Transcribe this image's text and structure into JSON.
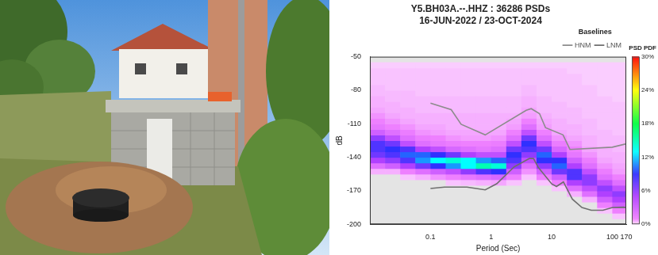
{
  "chart_data": {
    "type": "heatmap",
    "title": "Y5.BH03A.--.HHZ : 36286 PSDs",
    "subtitle": "16-JUN-2022 / 23-OCT-2024",
    "x_label": "Period (Sec)",
    "y_label": "dB",
    "log": "x",
    "grid": false,
    "xlim": [
      0.01,
      170
    ],
    "xticks": [
      0.1,
      1,
      10,
      100,
      170
    ],
    "ylim": [
      -200,
      -50
    ],
    "yticks": [
      -200,
      -170,
      -140,
      -110,
      -80,
      -50
    ],
    "legend": "upper right",
    "legend_title": "Baselines",
    "series": [
      {
        "name": "HNM",
        "type": "line",
        "color": "#8c8c8c",
        "line_style": "solid",
        "x": [
          0.1,
          0.22,
          0.32,
          0.8,
          3.8,
          4.6,
          6.3,
          7.9,
          15.4,
          20,
          100,
          170
        ],
        "values": [
          -91.5,
          -97.4,
          -110.5,
          -120,
          -98,
          -96.5,
          -101,
          -113.5,
          -120,
          -133,
          -131,
          -128
        ]
      },
      {
        "name": "LNM",
        "type": "line",
        "color": "#6e6e6e",
        "line_style": "solid",
        "x": [
          0.1,
          0.17,
          0.4,
          0.8,
          1.24,
          2.4,
          4.3,
          5,
          6,
          10,
          12,
          15.6,
          21.9,
          31.6,
          45,
          70,
          101,
          154,
          170
        ],
        "values": [
          -168,
          -166.7,
          -166.7,
          -169.2,
          -163.7,
          -148.6,
          -141.1,
          -141.1,
          -149,
          -163.8,
          -166.2,
          -162.1,
          -177.5,
          -185,
          -187.5,
          -187.5,
          -185,
          -184.7,
          -185
        ]
      }
    ],
    "pdf": {
      "period_edges": [
        0.01,
        0.0178,
        0.0316,
        0.0562,
        0.1,
        0.178,
        0.316,
        0.562,
        1,
        1.78,
        3.16,
        5.62,
        10,
        17.8,
        31.6,
        56.2,
        100,
        178
      ],
      "db_edges": [
        -200,
        -195,
        -190,
        -185,
        -180,
        -175,
        -170,
        -165,
        -160,
        -155,
        -150,
        -145,
        -140,
        -135,
        -130,
        -125,
        -120,
        -115,
        -110,
        -105,
        -100,
        -95,
        -90,
        -85,
        -80,
        -75,
        -70,
        -65,
        -60,
        -55,
        -50
      ],
      "cells": [
        [
          0,
          0,
          0,
          0,
          0,
          0,
          0,
          0,
          0,
          0.5,
          2,
          5,
          7,
          8,
          8,
          6,
          3,
          1.5,
          1,
          0.8,
          0.6,
          0.5,
          0.5,
          0.4,
          0.4,
          0.3,
          0.3,
          0.3,
          0.2,
          0
        ],
        [
          0,
          0,
          0,
          0,
          0,
          0,
          0,
          0,
          0,
          0.5,
          3,
          6,
          8,
          9,
          7,
          4,
          2,
          1,
          0.8,
          0.6,
          0.5,
          0.5,
          0.4,
          0.4,
          0.3,
          0.3,
          0.3,
          0.3,
          0.2,
          0
        ],
        [
          0,
          0,
          0,
          0,
          0,
          0,
          0,
          0,
          0.3,
          1,
          5,
          8,
          10,
          8,
          4,
          2,
          1.2,
          0.8,
          0.6,
          0.5,
          0.5,
          0.4,
          0.4,
          0.4,
          0.3,
          0.3,
          0.3,
          0.3,
          0.2,
          0
        ],
        [
          0,
          0,
          0,
          0,
          0,
          0,
          0,
          0,
          0.5,
          2,
          7,
          11,
          10,
          5,
          2,
          1.2,
          0.8,
          0.6,
          0.5,
          0.5,
          0.4,
          0.4,
          0.4,
          0.3,
          0.3,
          0.3,
          0.3,
          0.3,
          0.2,
          0
        ],
        [
          0,
          0,
          0,
          0,
          0,
          0,
          0,
          0,
          0.8,
          3,
          9,
          13,
          9,
          4,
          1.5,
          1,
          0.7,
          0.6,
          0.5,
          0.5,
          0.4,
          0.4,
          0.4,
          0.3,
          0.3,
          0.3,
          0.3,
          0.3,
          0.2,
          0
        ],
        [
          0,
          0,
          0,
          0,
          0,
          0,
          0,
          0.3,
          1,
          4,
          11,
          14,
          7,
          2.5,
          1.2,
          0.8,
          0.6,
          0.5,
          0.5,
          0.5,
          0.4,
          0.4,
          0.4,
          0.3,
          0.3,
          0.3,
          0.3,
          0.3,
          0.2,
          0
        ],
        [
          0,
          0,
          0,
          0,
          0,
          0,
          0,
          0.4,
          1.5,
          6,
          13,
          13,
          5,
          2,
          1,
          0.7,
          0.6,
          0.5,
          0.5,
          0.5,
          0.4,
          0.4,
          0.4,
          0.3,
          0.3,
          0.3,
          0.3,
          0.3,
          0.2,
          0
        ],
        [
          0,
          0,
          0,
          0,
          0,
          0,
          0,
          0.5,
          2,
          8,
          15,
          11,
          4,
          1.5,
          1,
          0.7,
          0.6,
          0.5,
          0.5,
          0.5,
          0.4,
          0.4,
          0.4,
          0.3,
          0.3,
          0.3,
          0.3,
          0.3,
          0.2,
          0
        ],
        [
          0,
          0,
          0,
          0,
          0,
          0,
          0,
          0.6,
          2.5,
          9,
          14,
          10,
          4,
          2,
          1.2,
          0.8,
          0.6,
          0.5,
          0.5,
          0.5,
          0.4,
          0.4,
          0.4,
          0.3,
          0.3,
          0.3,
          0.3,
          0.3,
          0.2,
          0
        ],
        [
          0,
          0,
          0,
          0,
          0,
          0,
          0,
          0.3,
          1,
          3,
          6,
          8,
          9,
          7,
          4,
          2,
          1,
          0.7,
          0.6,
          0.5,
          0.4,
          0.4,
          0.4,
          0.3,
          0.3,
          0.3,
          0.3,
          0.3,
          0.2,
          0
        ],
        [
          0,
          0,
          0,
          0,
          0,
          0,
          0,
          0,
          0.3,
          0.8,
          2,
          4,
          6,
          8,
          9,
          7,
          4,
          2,
          1,
          0.7,
          0.6,
          0.5,
          0.5,
          0.4,
          0.4,
          0.3,
          0.3,
          0.3,
          0.2,
          0
        ],
        [
          0,
          0,
          0,
          0,
          0,
          0,
          0,
          0.3,
          1,
          3,
          6,
          9,
          10,
          7,
          4,
          2,
          1,
          0.7,
          0.6,
          0.5,
          0.4,
          0.4,
          0.4,
          0.3,
          0.3,
          0.3,
          0.3,
          0.3,
          0.2,
          0
        ],
        [
          0,
          0,
          0,
          0,
          0,
          0,
          0.3,
          1,
          3,
          7,
          10,
          9,
          5,
          2.5,
          1.2,
          0.8,
          0.6,
          0.5,
          0.5,
          0.4,
          0.4,
          0.4,
          0.3,
          0.3,
          0.3,
          0.3,
          0.3,
          0.3,
          0.2,
          0
        ],
        [
          0,
          0,
          0,
          0,
          0,
          0.5,
          2,
          5,
          8,
          8,
          5,
          3,
          1.5,
          1,
          0.8,
          0.6,
          0.5,
          0.5,
          0.4,
          0.4,
          0.4,
          0.3,
          0.3,
          0.3,
          0.3,
          0.3,
          0.3,
          0.2,
          0.2,
          0
        ],
        [
          0,
          0,
          0,
          0,
          0.5,
          2,
          4,
          6,
          6,
          4,
          2,
          1.2,
          0.8,
          0.6,
          0.5,
          0.5,
          0.4,
          0.4,
          0.4,
          0.3,
          0.3,
          0.3,
          0.3,
          0.3,
          0.3,
          0.2,
          0.2,
          0.2,
          0.2,
          0
        ],
        [
          0,
          0,
          0.3,
          1,
          3,
          5,
          6,
          4,
          2,
          1.2,
          0.8,
          0.6,
          0.5,
          0.5,
          0.4,
          0.4,
          0.4,
          0.3,
          0.3,
          0.3,
          0.3,
          0.3,
          0.3,
          0.2,
          0.2,
          0.2,
          0.2,
          0.2,
          0.2,
          0
        ],
        [
          0,
          0.3,
          1,
          3,
          5,
          6,
          4,
          2,
          1,
          0.7,
          0.6,
          0.5,
          0.5,
          0.4,
          0.4,
          0.4,
          0.3,
          0.3,
          0.3,
          0.3,
          0.3,
          0.3,
          0.2,
          0.2,
          0.2,
          0.2,
          0.2,
          0.2,
          0.2,
          0
        ]
      ]
    },
    "colorbar": {
      "title": "PSD PDF",
      "range": [
        0,
        30
      ],
      "ticks": [
        {
          "value": 0,
          "label": "0%"
        },
        {
          "value": 6,
          "label": "6%"
        },
        {
          "value": 12,
          "label": "12%"
        },
        {
          "value": 18,
          "label": "18%"
        },
        {
          "value": 24,
          "label": "24%"
        },
        {
          "value": 30,
          "label": "30%"
        }
      ]
    }
  }
}
